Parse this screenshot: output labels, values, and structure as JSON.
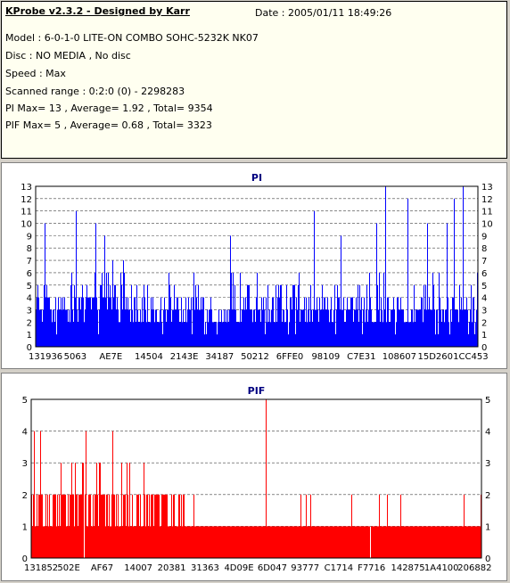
{
  "header": {
    "title": "KProbe v2.3.2 - Designed by Karr",
    "date": "Date : 2005/01/11 18:49:26",
    "lines": [
      "Model : 6-0-1-0 LITE-ON COMBO SOHC-5232K NK07",
      "Disc : NO MEDIA , No disc",
      "Speed : Max",
      "Scanned range : 0:2:0 (0) - 2298283",
      "PI Max= 13 , Average= 1.92 , Total= 9354",
      "PIF Max= 5 , Average= 0.68 , Total= 3323"
    ]
  },
  "chart_data": [
    {
      "type": "bar",
      "title": "PI",
      "color": "#0000ff",
      "ylim": [
        0,
        13
      ],
      "yticks": [
        "0",
        "1",
        "2",
        "3",
        "4",
        "5",
        "6",
        "7",
        "8",
        "9",
        "10",
        "11",
        "12",
        "13"
      ],
      "xticks": [
        "131936",
        "5063",
        "AE7E",
        "14504",
        "2143E",
        "34187",
        "50212",
        "6FFE0",
        "98109",
        "C7E31",
        "108607",
        "15D260",
        "1CC453"
      ],
      "grid": true,
      "peaks": [
        {
          "x": 0.02,
          "y": 10
        },
        {
          "x": 0.09,
          "y": 11
        },
        {
          "x": 0.135,
          "y": 10
        },
        {
          "x": 0.155,
          "y": 9
        },
        {
          "x": 0.44,
          "y": 9
        },
        {
          "x": 0.63,
          "y": 11
        },
        {
          "x": 0.69,
          "y": 9
        },
        {
          "x": 0.77,
          "y": 10
        },
        {
          "x": 0.84,
          "y": 12
        },
        {
          "x": 0.885,
          "y": 10
        },
        {
          "x": 0.93,
          "y": 10
        },
        {
          "x": 0.945,
          "y": 12
        },
        {
          "x": 0.965,
          "y": 13
        },
        {
          "x": 0.79,
          "y": 13
        }
      ]
    },
    {
      "type": "bar",
      "title": "PIF",
      "color": "#ff0000",
      "ylim": [
        0,
        5
      ],
      "yticks": [
        "0",
        "1",
        "2",
        "3",
        "4",
        "5"
      ],
      "xticks": [
        "131852",
        "502E",
        "AF67",
        "14007",
        "20381",
        "31363",
        "4D09E",
        "6D047",
        "93777",
        "C1714",
        "F7716",
        "142875",
        "1A4100",
        "206882"
      ],
      "grid": true,
      "peaks": [
        {
          "x": 0.005,
          "y": 4
        },
        {
          "x": 0.02,
          "y": 4
        },
        {
          "x": 0.12,
          "y": 4
        },
        {
          "x": 0.15,
          "y": 3
        },
        {
          "x": 0.18,
          "y": 4
        },
        {
          "x": 0.2,
          "y": 3
        },
        {
          "x": 0.25,
          "y": 3
        },
        {
          "x": 0.36,
          "y": 2
        },
        {
          "x": 0.52,
          "y": 5
        },
        {
          "x": 0.62,
          "y": 2
        },
        {
          "x": 0.71,
          "y": 2
        },
        {
          "x": 0.79,
          "y": 2
        },
        {
          "x": 0.82,
          "y": 2
        },
        {
          "x": 0.96,
          "y": 2
        }
      ]
    }
  ]
}
